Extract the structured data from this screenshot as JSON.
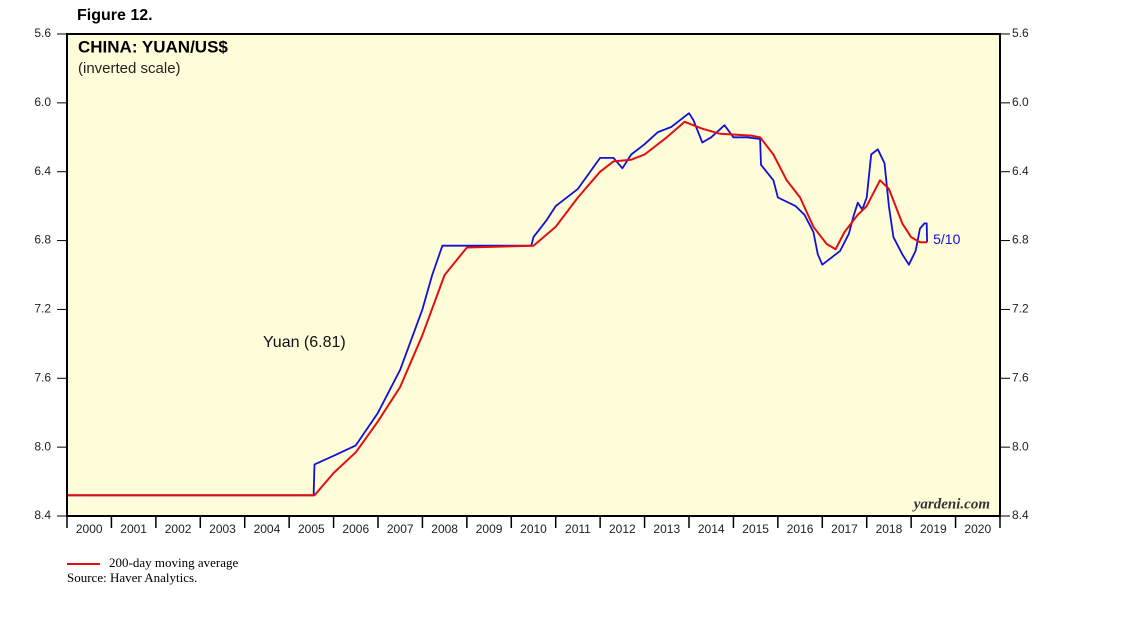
{
  "chart_data": {
    "type": "line",
    "figure_label": "Figure 12.",
    "title": "CHINA: YUAN/US$",
    "subtitle": "(inverted scale)",
    "end_date_label": "5/10",
    "watermark": "yardeni.com",
    "source": "Source: Haver Analytics.",
    "background": "#fffcd9",
    "y_inverted": true,
    "ylim": [
      5.6,
      8.4
    ],
    "yticks": [
      5.6,
      {
        "value": 6,
        "label": "6.0"
      },
      6.4,
      6.8,
      7.2,
      7.6,
      {
        "value": 8,
        "label": "8.0"
      },
      8.4
    ],
    "xlim": [
      2000,
      2021
    ],
    "xticks": [
      2000,
      2001,
      2002,
      2003,
      2004,
      2005,
      2006,
      2007,
      2008,
      2009,
      2010,
      2011,
      2012,
      2013,
      2014,
      2015,
      2016,
      2017,
      2018,
      2019,
      2020,
      2021
    ],
    "x_labels": [
      "2000",
      "2001",
      "2002",
      "2003",
      "2004",
      "2005",
      "2006",
      "2007",
      "2008",
      "2009",
      "2010",
      "2011",
      "2012",
      "2013",
      "2014",
      "2015",
      "2016",
      "2017",
      "2018",
      "2019",
      "2020"
    ],
    "series": [
      {
        "name": "Yuan (6.81)",
        "color": "#1010d8",
        "x": [
          2000,
          2005.55,
          2005.57,
          2006.0,
          2006.5,
          2007.0,
          2007.5,
          2008.0,
          2008.22,
          2008.45,
          2010.45,
          2010.5,
          2010.8,
          2011.0,
          2011.5,
          2012.0,
          2012.3,
          2012.5,
          2012.7,
          2013.0,
          2013.3,
          2013.6,
          2014.0,
          2014.1,
          2014.3,
          2014.5,
          2014.8,
          2015.0,
          2015.3,
          2015.6,
          2015.62,
          2015.9,
          2016.0,
          2016.4,
          2016.6,
          2016.8,
          2016.9,
          2017.0,
          2017.2,
          2017.4,
          2017.6,
          2017.7,
          2017.8,
          2017.9,
          2018.0,
          2018.1,
          2018.25,
          2018.4,
          2018.5,
          2018.6,
          2018.8,
          2018.95,
          2019.1,
          2019.2,
          2019.3,
          2019.35,
          2019.36
        ],
        "values": [
          8.28,
          8.28,
          8.1,
          8.05,
          7.99,
          7.8,
          7.55,
          7.2,
          7.0,
          6.83,
          6.83,
          6.78,
          6.68,
          6.6,
          6.5,
          6.32,
          6.32,
          6.38,
          6.3,
          6.24,
          6.17,
          6.14,
          6.06,
          6.1,
          6.23,
          6.2,
          6.13,
          6.2,
          6.2,
          6.21,
          6.36,
          6.45,
          6.55,
          6.6,
          6.65,
          6.75,
          6.88,
          6.94,
          6.9,
          6.86,
          6.76,
          6.66,
          6.58,
          6.62,
          6.55,
          6.3,
          6.27,
          6.35,
          6.6,
          6.78,
          6.88,
          6.94,
          6.86,
          6.73,
          6.7,
          6.7,
          6.81
        ]
      },
      {
        "name": "200-day moving average",
        "color": "#e01010",
        "x": [
          2000,
          2005.57,
          2006.0,
          2006.5,
          2007.0,
          2007.5,
          2008.0,
          2008.5,
          2009.0,
          2010.5,
          2011.0,
          2011.5,
          2012.0,
          2012.3,
          2012.7,
          2013.0,
          2013.5,
          2013.9,
          2014.3,
          2014.7,
          2015.4,
          2015.6,
          2015.9,
          2016.2,
          2016.5,
          2016.8,
          2017.1,
          2017.3,
          2017.5,
          2017.8,
          2018.0,
          2018.3,
          2018.5,
          2018.8,
          2019.0,
          2019.2,
          2019.36
        ],
        "values": [
          8.28,
          8.28,
          8.15,
          8.03,
          7.85,
          7.65,
          7.35,
          7.0,
          6.84,
          6.83,
          6.72,
          6.55,
          6.4,
          6.34,
          6.33,
          6.3,
          6.2,
          6.11,
          6.15,
          6.18,
          6.19,
          6.2,
          6.3,
          6.45,
          6.55,
          6.72,
          6.82,
          6.85,
          6.75,
          6.65,
          6.6,
          6.45,
          6.5,
          6.7,
          6.78,
          6.81,
          6.81
        ]
      }
    ]
  }
}
